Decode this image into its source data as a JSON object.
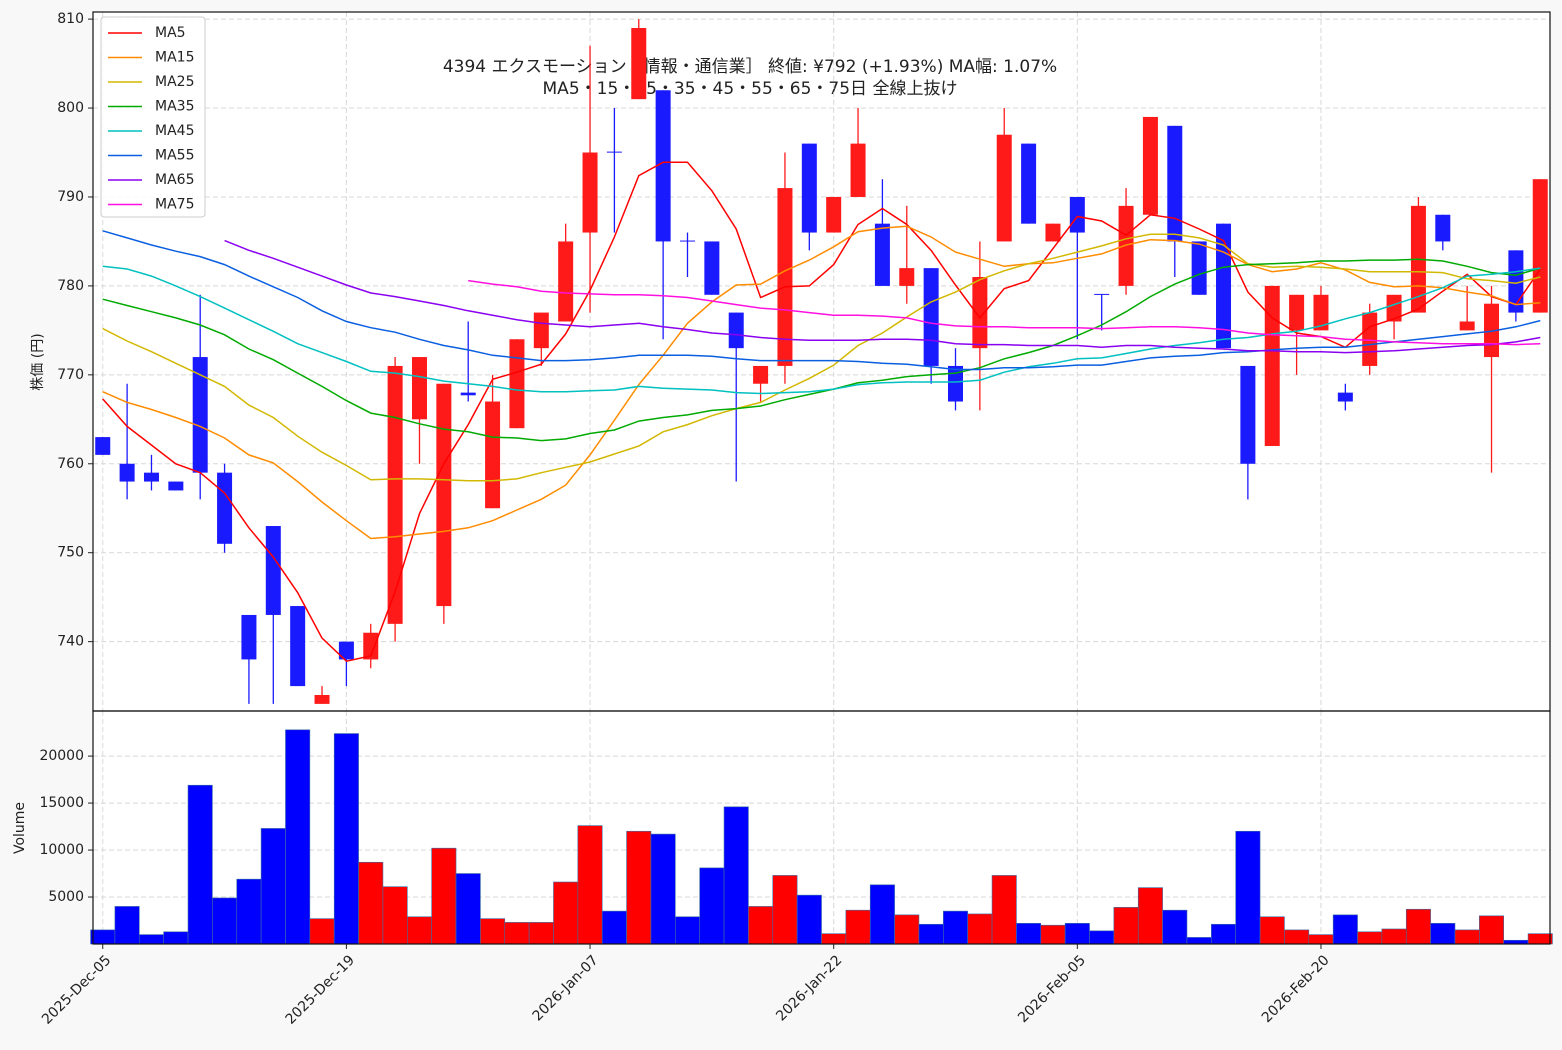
{
  "chart_data": [
    {
      "type": "candlestick",
      "title": "4394  エクスモーション［情報・通信業］  終値: ¥792 (+1.93%)   MA幅: 1.07%",
      "subtitle": "MA5・15・25・35・45・55・65・75日 全線上抜け",
      "ylabel": "株価 (円)",
      "open": [
        763,
        760,
        759,
        758,
        772,
        759,
        743,
        753,
        744,
        733,
        740,
        738,
        742,
        765,
        744,
        768,
        755,
        764,
        773,
        776,
        786,
        795.1,
        801,
        802,
        785.1,
        785,
        777,
        769,
        771,
        796,
        786,
        790,
        787,
        780,
        782,
        771,
        773,
        785,
        796,
        785,
        790,
        779.1,
        780,
        788,
        798,
        785,
        787,
        771,
        762,
        775,
        775,
        768,
        771,
        776,
        777,
        788,
        775,
        772,
        784,
        777
      ],
      "high": [
        763,
        769,
        761,
        758,
        779,
        760,
        743,
        753,
        744,
        735,
        740,
        742,
        772,
        772,
        769,
        776,
        770,
        774,
        777,
        787,
        807,
        800,
        810,
        802,
        786,
        785,
        777,
        771,
        795,
        796,
        790,
        800,
        792,
        789,
        782,
        773,
        785,
        800,
        796,
        787,
        790,
        779.1,
        791,
        799,
        798,
        785,
        787,
        771,
        780,
        779,
        780,
        769,
        778,
        779,
        790,
        788,
        780,
        780,
        784,
        792
      ],
      "low": [
        761,
        756,
        757,
        757,
        756,
        750,
        733,
        733,
        735,
        733,
        735,
        737,
        740,
        760,
        742,
        767,
        755,
        764,
        771,
        776,
        777,
        786,
        801,
        774,
        781,
        779,
        758,
        767,
        769,
        784,
        786,
        790,
        780,
        778,
        769,
        766,
        766,
        785,
        787,
        785,
        774,
        775,
        779,
        788,
        781,
        779,
        773,
        756,
        762,
        770,
        775,
        766,
        770,
        774,
        777,
        784,
        775,
        759,
        776,
        777
      ],
      "close": [
        761,
        758,
        758,
        757,
        759,
        751,
        738,
        743,
        735,
        734,
        738,
        741,
        771,
        772,
        769,
        767.7,
        767,
        774,
        777,
        785,
        795,
        795,
        809,
        785,
        785,
        779,
        773,
        771,
        791,
        786,
        790,
        796,
        780,
        782,
        771,
        767,
        781,
        797,
        787,
        787,
        786,
        779,
        789,
        799,
        785,
        779,
        773,
        760,
        780,
        779,
        779,
        767,
        777,
        779,
        789,
        785,
        776,
        778,
        777,
        792
      ],
      "up_color": "#ff1a1a",
      "down_color": "#1a1aff",
      "series": [
        {
          "name": "MA5",
          "color": "#ff0000",
          "values": [
            767.3,
            764.2,
            762.1,
            760,
            759,
            756.7,
            752.8,
            749.5,
            745.5,
            740.4,
            737.8,
            738.4,
            745.6,
            754.4,
            760,
            764.4,
            769.5,
            770.3,
            771.2,
            774.6,
            779.5,
            785.5,
            792.4,
            793.9,
            793.9,
            790.7,
            786.4,
            778.7,
            779.9,
            780,
            782.4,
            786.9,
            788.7,
            786.9,
            784,
            780.1,
            776.4,
            779.7,
            780.6,
            784.2,
            787.8,
            787.3,
            785.7,
            788,
            787.6,
            786.4,
            785.1,
            779.3,
            776.4,
            774.7,
            774.3,
            773.1,
            775.4,
            776.3,
            777.4,
            779.4,
            781.3,
            778.8,
            777.9,
            781.9
          ]
        },
        {
          "name": "MA15",
          "color": "#ff8c00",
          "values": [
            768.1,
            766.9,
            766.1,
            765.2,
            764.2,
            762.9,
            761,
            760.1,
            758,
            755.7,
            753.6,
            751.6,
            751.8,
            752.1,
            752.4,
            752.8,
            753.6,
            754.8,
            756,
            757.6,
            761,
            764.9,
            768.9,
            772.2,
            775.8,
            778.2,
            780.1,
            780.2,
            781.7,
            782.9,
            784.4,
            786.1,
            786.5,
            786.7,
            785.5,
            783.8,
            783,
            782.2,
            782.5,
            782.6,
            783.1,
            783.6,
            784.6,
            785.2,
            785.1,
            784.7,
            783.8,
            782.4,
            781.6,
            781.9,
            782.6,
            781.8,
            780.4,
            779.9,
            780,
            779.8,
            779.3,
            778.9,
            777.9,
            778.1
          ]
        },
        {
          "name": "MA25",
          "color": "#d2b800",
          "values": [
            775.2,
            773.8,
            772.6,
            771.3,
            770,
            768.7,
            766.6,
            765.2,
            763.1,
            761.3,
            759.8,
            758.2,
            758.3,
            758.3,
            758.2,
            758.1,
            758.1,
            758.3,
            759,
            759.6,
            760.2,
            761.1,
            762,
            763.6,
            764.4,
            765.4,
            766.2,
            766.9,
            768.3,
            769.6,
            771.1,
            773.3,
            774.7,
            776.5,
            778.2,
            779.3,
            780.7,
            781.7,
            782.5,
            783.1,
            783.8,
            784.5,
            785.3,
            785.8,
            785.8,
            785.4,
            784.6,
            782.5,
            782.1,
            782.2,
            782.1,
            781.9,
            781.6,
            781.6,
            781.6,
            781.5,
            780.8,
            780.6,
            780.3,
            781
          ]
        },
        {
          "name": "MA35",
          "color": "#00aa00",
          "values": [
            778.5,
            777.8,
            777.1,
            776.4,
            775.6,
            774.5,
            772.9,
            771.7,
            770.2,
            768.7,
            767.1,
            765.7,
            765.2,
            764.5,
            763.9,
            763.6,
            763,
            762.9,
            762.6,
            762.8,
            763.4,
            763.8,
            764.8,
            765.2,
            765.5,
            766,
            766.2,
            766.5,
            767.2,
            767.8,
            768.4,
            769.1,
            769.4,
            769.8,
            770,
            770.2,
            770.8,
            771.8,
            772.5,
            773.3,
            774.4,
            775.6,
            777.1,
            778.8,
            780.2,
            781.3,
            782.1,
            782.4,
            782.5,
            782.6,
            782.8,
            782.8,
            782.9,
            782.9,
            783,
            782.8,
            782.2,
            781.5,
            781.2,
            782
          ]
        },
        {
          "name": "MA45",
          "color": "#00c0c0",
          "values": [
            782.2,
            781.9,
            781.1,
            780,
            778.8,
            777.5,
            776.2,
            774.9,
            773.5,
            772.5,
            771.5,
            770.4,
            770.2,
            769.8,
            769.3,
            769,
            768.7,
            768.3,
            768.1,
            768.1,
            768.2,
            768.3,
            768.7,
            768.5,
            768.4,
            768.3,
            768,
            767.9,
            768,
            768.1,
            768.4,
            768.9,
            769.1,
            769.2,
            769.2,
            769.2,
            769.4,
            770.3,
            770.9,
            771.3,
            771.8,
            771.9,
            772.4,
            772.9,
            773.3,
            773.6,
            774,
            774.2,
            774.6,
            774.9,
            775.5,
            776.3,
            777,
            777.9,
            778.8,
            779.8,
            781.1,
            781.3,
            781.6,
            782
          ]
        },
        {
          "name": "MA55",
          "color": "#0a5fe0",
          "values": [
            786.2,
            785.4,
            784.6,
            783.9,
            783.3,
            782.4,
            781.1,
            779.9,
            778.7,
            777.2,
            776,
            775.3,
            774.8,
            774,
            773.3,
            772.8,
            772.2,
            771.9,
            771.6,
            771.6,
            771.7,
            771.9,
            772.2,
            772.2,
            772.2,
            772.1,
            771.8,
            771.6,
            771.6,
            771.6,
            771.6,
            771.5,
            771.3,
            771.2,
            770.9,
            770.6,
            770.6,
            770.8,
            770.8,
            770.9,
            771.1,
            771.1,
            771.5,
            771.9,
            772.1,
            772.2,
            772.5,
            772.6,
            772.8,
            773,
            773.1,
            773.1,
            773.4,
            773.7,
            774,
            774.3,
            774.6,
            774.9,
            775.4,
            776.1
          ]
        },
        {
          "name": "MA65",
          "color": "#8a00f0",
          "values": [
            null,
            null,
            null,
            null,
            null,
            785.1,
            784,
            783.1,
            782.1,
            781.1,
            780.1,
            779.2,
            778.8,
            778.3,
            777.8,
            777.2,
            776.7,
            776.2,
            775.8,
            775.6,
            775.4,
            775.6,
            775.8,
            775.4,
            775.1,
            774.7,
            774.5,
            774.2,
            774,
            773.9,
            773.9,
            773.9,
            774,
            774,
            773.9,
            773.5,
            773.4,
            773.4,
            773.3,
            773.3,
            773.3,
            773.1,
            773.3,
            773.3,
            773.1,
            773,
            772.9,
            772.7,
            772.7,
            772.6,
            772.6,
            772.5,
            772.6,
            772.7,
            772.9,
            773.1,
            773.3,
            773.4,
            773.7,
            774.2
          ]
        },
        {
          "name": "MA75",
          "color": "#ff10e0",
          "values": [
            null,
            null,
            null,
            null,
            null,
            null,
            null,
            null,
            null,
            null,
            null,
            null,
            null,
            null,
            null,
            780.6,
            780.2,
            779.9,
            779.4,
            779.2,
            779.1,
            779,
            779,
            778.9,
            778.7,
            778.3,
            777.9,
            777.5,
            777.3,
            777,
            776.7,
            776.7,
            776.6,
            776.4,
            775.8,
            775.5,
            775.4,
            775.4,
            775.3,
            775.3,
            775.3,
            775.2,
            775.3,
            775.4,
            775.4,
            775.3,
            775.1,
            774.7,
            774.5,
            774.4,
            774.3,
            774,
            773.9,
            773.7,
            773.6,
            773.5,
            773.5,
            773.5,
            773.4,
            773.5
          ]
        }
      ],
      "ylim": [
        732.2,
        810.8
      ],
      "yticks": [
        740,
        750,
        760,
        770,
        780,
        790,
        800,
        810
      ],
      "grid": true,
      "legend": "upper left"
    },
    {
      "type": "bar",
      "ylabel": "Volume",
      "categories": [
        "2025-Dec-05",
        null,
        null,
        null,
        null,
        null,
        null,
        null,
        null,
        null,
        "2025-Dec-19",
        null,
        null,
        null,
        null,
        null,
        null,
        null,
        null,
        null,
        "2026-Jan-07",
        null,
        null,
        null,
        null,
        null,
        null,
        null,
        null,
        null,
        "2026-Jan-22",
        null,
        null,
        null,
        null,
        null,
        null,
        null,
        null,
        null,
        "2026-Feb-05",
        null,
        null,
        null,
        null,
        null,
        null,
        null,
        null,
        null,
        "2026-Feb-20",
        null,
        null,
        null,
        null,
        null,
        null,
        null,
        null,
        null
      ],
      "values": [
        1500,
        4000,
        1000,
        1300,
        16900,
        4900,
        6900,
        12300,
        22800,
        2700,
        22400,
        8700,
        6100,
        2900,
        10200,
        7500,
        2700,
        2300,
        2300,
        6600,
        12600,
        3500,
        12000,
        11700,
        2900,
        8100,
        14600,
        4000,
        7300,
        5200,
        1100,
        3600,
        6300,
        3100,
        2100,
        3500,
        3200,
        7300,
        2200,
        2000,
        2200,
        1400,
        3900,
        6000,
        3600,
        700,
        2100,
        12000,
        2900,
        1500,
        1000,
        3100,
        1300,
        1600,
        3700,
        2200,
        1500,
        3000,
        400,
        1100
      ],
      "ylim": [
        0,
        24800
      ],
      "yticks": [
        5000,
        10000,
        15000,
        20000
      ],
      "grid": true
    }
  ]
}
